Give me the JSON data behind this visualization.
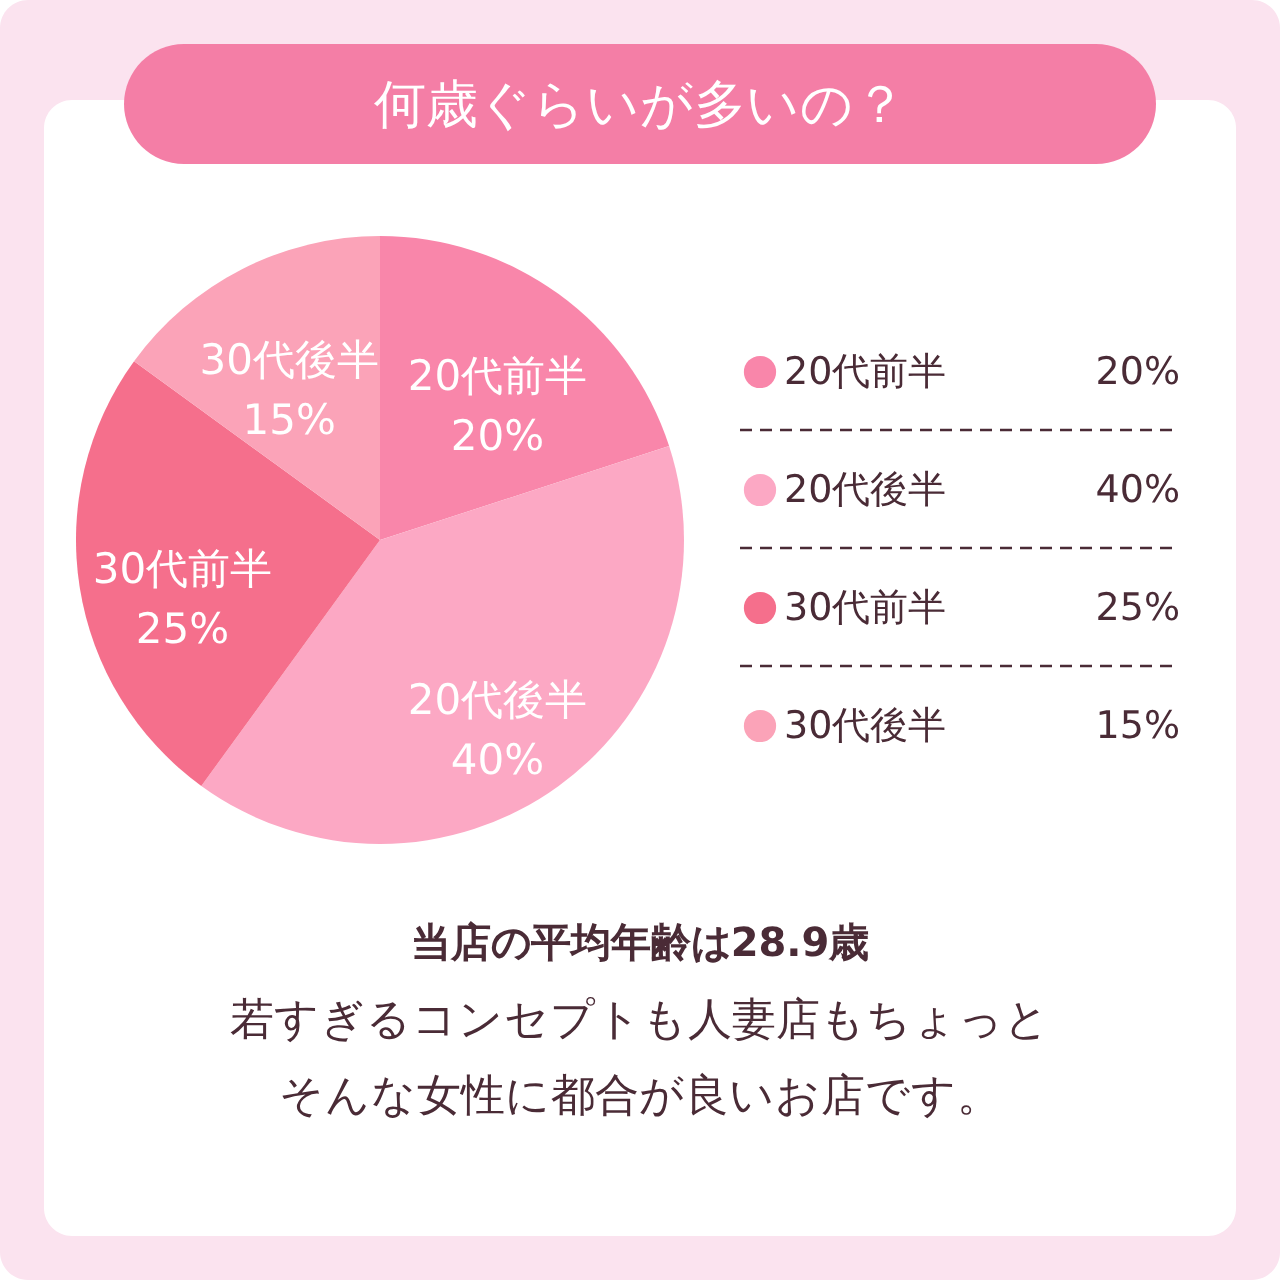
{
  "chart_data": {
    "type": "pie",
    "title": "何歳ぐらいが多いの？",
    "categories": [
      "20代前半",
      "20代後半",
      "30代前半",
      "30代後半"
    ],
    "values": [
      20,
      40,
      25,
      15
    ],
    "value_labels": [
      "20%",
      "40%",
      "25%",
      "15%"
    ],
    "colors": [
      "#f986aa",
      "#fca8c4",
      "#f56f8c",
      "#fba3b8"
    ],
    "data_labels": true,
    "legend": "right",
    "annotations": [
      "当店の平均年齢は28.9歳",
      "若すぎるコンセプトも人妻店もちょっと",
      "そんな女性に都合が良いお店です。"
    ]
  }
}
